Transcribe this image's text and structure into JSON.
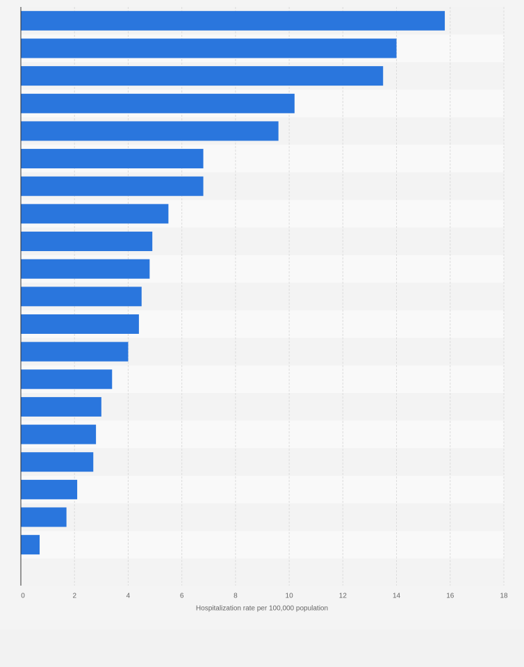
{
  "chart_data": {
    "type": "hbar",
    "categories": [
      null,
      null,
      null,
      null,
      null,
      null,
      null,
      null,
      null,
      null,
      null,
      null,
      null,
      null,
      null,
      null,
      null,
      null,
      null,
      null
    ],
    "values": [
      15.8,
      14.0,
      13.5,
      10.2,
      9.6,
      6.8,
      6.8,
      5.5,
      4.9,
      4.8,
      4.5,
      4.4,
      4.0,
      3.4,
      3.0,
      2.8,
      2.7,
      2.1,
      1.7,
      0.7
    ],
    "color": "#2a76dd",
    "xlim": [
      0,
      18
    ],
    "xticks": [
      0,
      2,
      4,
      6,
      8,
      10,
      12,
      14,
      16,
      18
    ],
    "xlabel": "Hospitalization rate per 100,000 population",
    "grid": true
  }
}
